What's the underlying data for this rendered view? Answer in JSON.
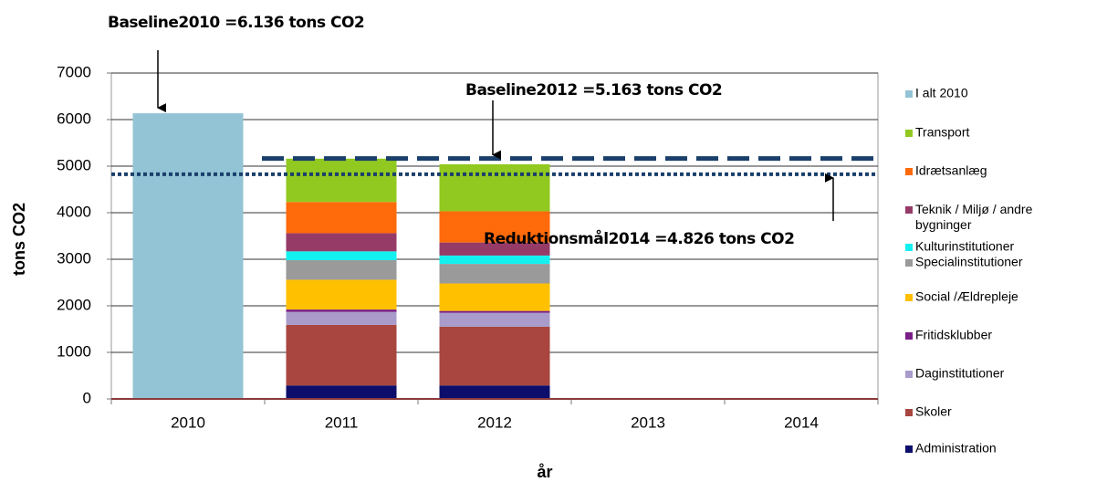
{
  "chart_data": {
    "type": "stacked_bar",
    "ylabel": "tons CO2",
    "xlabel": "år",
    "categories": [
      "2010",
      "2011",
      "2012",
      "2013",
      "2014"
    ],
    "ylim": [
      0,
      7000
    ],
    "yticks": [
      0,
      1000,
      2000,
      3000,
      4000,
      5000,
      6000,
      7000
    ],
    "grid": true,
    "legend": "right",
    "series": [
      {
        "name": "I alt 2010",
        "color": "#93c4d5",
        "values": [
          6136,
          null,
          null,
          null,
          null
        ]
      },
      {
        "name": "Transport",
        "color": "#92c920",
        "values": [
          null,
          930,
          1010,
          null,
          null
        ]
      },
      {
        "name": "Idrætsanlæg",
        "color": "#ff6a0a",
        "values": [
          null,
          670,
          670,
          null,
          null
        ]
      },
      {
        "name": "Teknik / Miljø  / andre bygninger",
        "color": "#963b68",
        "values": [
          null,
          390,
          280,
          null,
          null
        ]
      },
      {
        "name": "Kulturinstitutioner",
        "color": "#14f0f0",
        "values": [
          null,
          190,
          180,
          null,
          null
        ]
      },
      {
        "name": "Specialinstitutioner",
        "color": "#9a9a9a",
        "values": [
          null,
          420,
          420,
          null,
          null
        ]
      },
      {
        "name": "Social /Ældrepleje",
        "color": "#ffc000",
        "values": [
          null,
          640,
          590,
          null,
          null
        ]
      },
      {
        "name": "Fritidsklubber",
        "color": "#7a1e88",
        "values": [
          null,
          50,
          40,
          null,
          null
        ]
      },
      {
        "name": "Daginstitutioner",
        "color": "#a99cca",
        "values": [
          null,
          280,
          300,
          null,
          null
        ]
      },
      {
        "name": "Skoler",
        "color": "#a8463f",
        "values": [
          null,
          1300,
          1260,
          null,
          null
        ]
      },
      {
        "name": "Administration",
        "color": "#0d0d6b",
        "values": [
          null,
          290,
          290,
          null,
          null
        ]
      }
    ],
    "reference_lines": [
      {
        "label": "Baseline2012 =5.163 tons CO2",
        "value": 5163,
        "style": "dashed",
        "color": "#1a3f6b"
      },
      {
        "label": "Reduktionsmål2014 =4.826 tons CO2",
        "value": 4826,
        "style": "dotted",
        "color": "#1a3f6b"
      }
    ],
    "annotation": {
      "label": "Baseline2010 =6.136 tons CO2",
      "value": 6136
    }
  }
}
